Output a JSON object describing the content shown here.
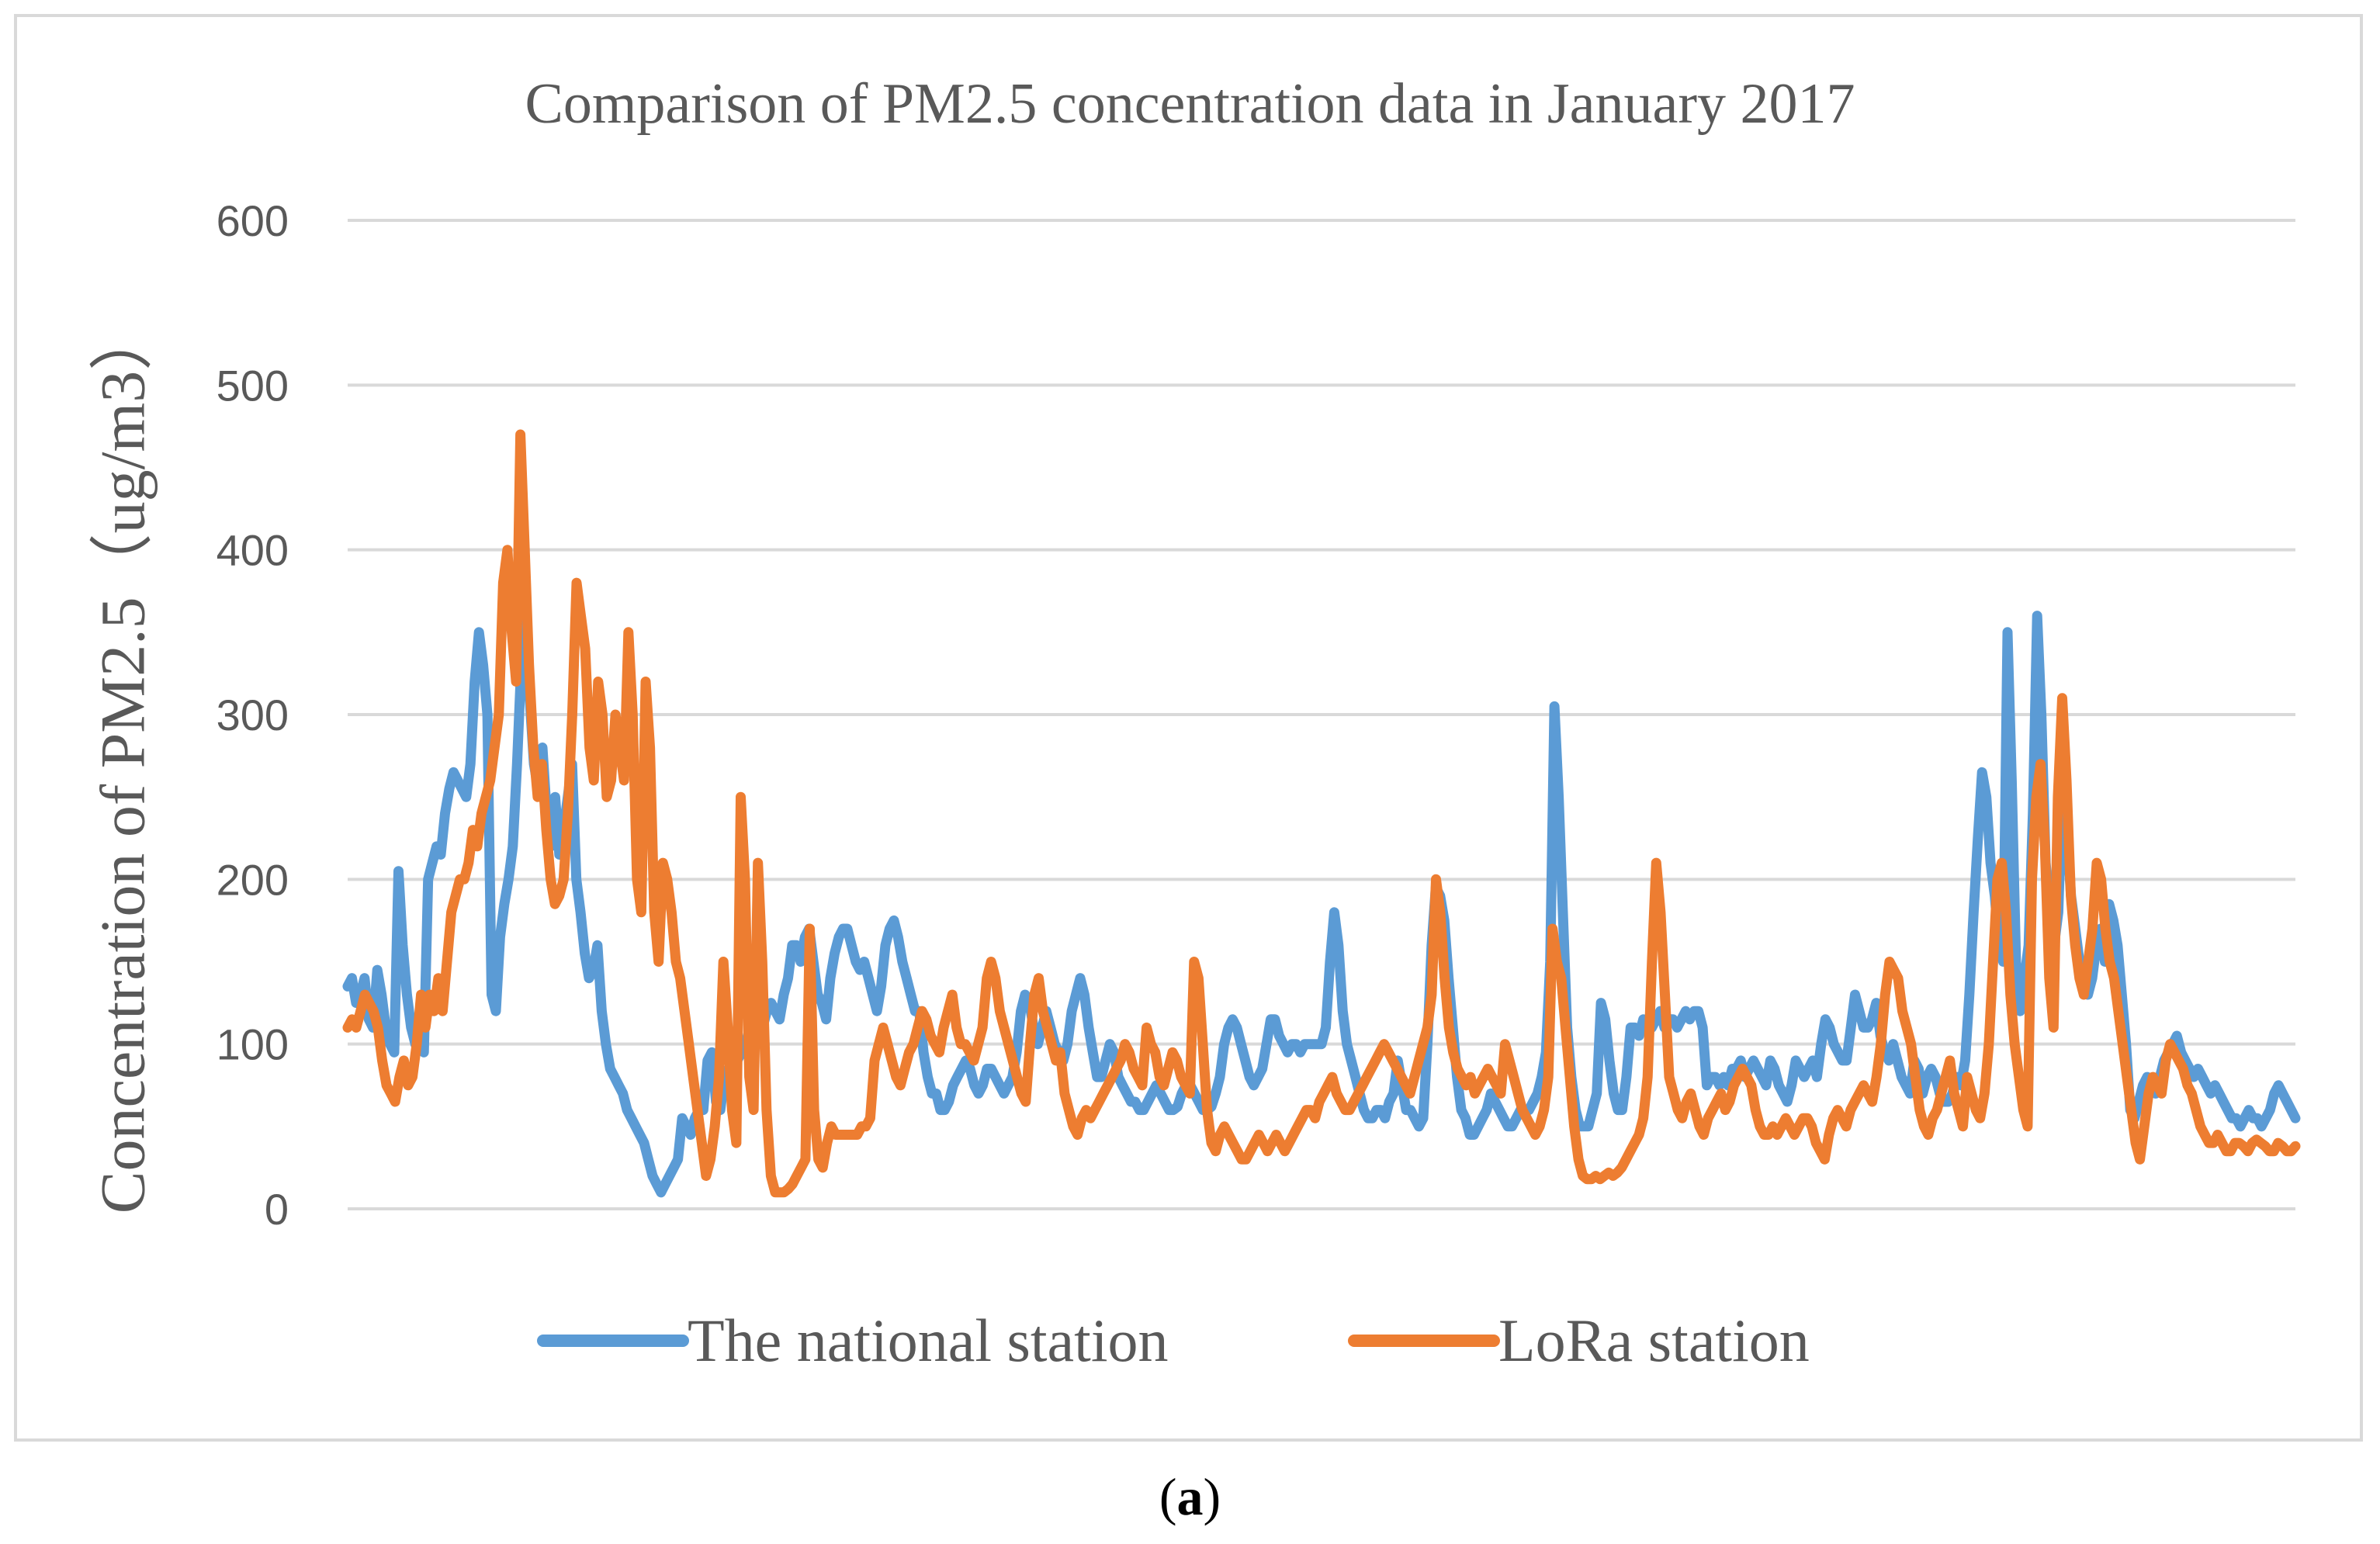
{
  "chart_data": {
    "type": "line",
    "title": "Comparison of PM2.5 concentration data in January 2017",
    "ylabel": "Concentration of PM2.5（ug/m3）",
    "xlabel": "",
    "ylim": [
      0,
      600
    ],
    "yticks": [
      0,
      100,
      200,
      300,
      400,
      500,
      600
    ],
    "grid": true,
    "legend": "bottom",
    "series": [
      {
        "name": "The national station",
        "color": "#5b9bd5",
        "values": [
          135,
          140,
          125,
          130,
          140,
          115,
          110,
          145,
          130,
          110,
          100,
          95,
          205,
          160,
          130,
          110,
          100,
          105,
          95,
          200,
          210,
          220,
          215,
          240,
          255,
          265,
          260,
          255,
          250,
          270,
          320,
          350,
          330,
          300,
          130,
          120,
          165,
          185,
          200,
          220,
          270,
          330,
          360,
          310,
          270,
          255,
          280,
          240,
          220,
          250,
          215,
          230,
          250,
          270,
          200,
          180,
          155,
          140,
          145,
          160,
          120,
          100,
          85,
          80,
          75,
          70,
          60,
          55,
          50,
          45,
          40,
          30,
          20,
          15,
          10,
          15,
          20,
          25,
          30,
          55,
          50,
          45,
          55,
          60,
          60,
          90,
          95,
          65,
          60,
          80,
          85,
          80,
          90,
          95,
          100,
          110,
          150,
          140,
          110,
          120,
          125,
          120,
          115,
          130,
          140,
          160,
          160,
          150,
          165,
          170,
          150,
          130,
          125,
          115,
          140,
          155,
          165,
          170,
          170,
          160,
          150,
          145,
          150,
          140,
          130,
          120,
          135,
          160,
          170,
          175,
          165,
          150,
          140,
          130,
          120,
          120,
          95,
          80,
          70,
          70,
          60,
          60,
          65,
          75,
          80,
          85,
          90,
          85,
          75,
          70,
          75,
          85,
          85,
          80,
          75,
          70,
          75,
          80,
          95,
          120,
          130,
          125,
          110,
          100,
          110,
          120,
          110,
          100,
          95,
          90,
          100,
          120,
          130,
          140,
          130,
          110,
          95,
          80,
          80,
          90,
          100,
          95,
          80,
          75,
          70,
          65,
          65,
          60,
          60,
          65,
          70,
          75,
          70,
          65,
          60,
          60,
          62,
          70,
          75,
          75,
          70,
          65,
          60,
          60,
          62,
          70,
          80,
          100,
          110,
          115,
          110,
          100,
          90,
          80,
          75,
          80,
          85,
          100,
          115,
          115,
          105,
          100,
          95,
          100,
          100,
          95,
          100,
          100,
          100,
          100,
          100,
          110,
          150,
          180,
          160,
          120,
          100,
          90,
          80,
          70,
          60,
          55,
          55,
          60,
          60,
          55,
          65,
          70,
          90,
          75,
          60,
          60,
          55,
          50,
          55,
          100,
          160,
          195,
          190,
          175,
          140,
          110,
          80,
          60,
          55,
          45,
          45,
          50,
          55,
          60,
          70,
          65,
          60,
          55,
          50,
          50,
          55,
          60,
          60,
          60,
          65,
          70,
          80,
          95,
          150,
          305,
          250,
          180,
          110,
          80,
          60,
          50,
          50,
          50,
          60,
          70,
          125,
          115,
          90,
          70,
          60,
          60,
          80,
          110,
          110,
          105,
          115,
          110,
          110,
          115,
          120,
          110,
          115,
          115,
          110,
          115,
          120,
          115,
          120,
          120,
          110,
          75,
          80,
          80,
          75,
          80,
          75,
          85,
          85,
          90,
          80,
          85,
          90,
          85,
          80,
          75,
          90,
          85,
          75,
          70,
          65,
          75,
          90,
          85,
          80,
          85,
          90,
          80,
          100,
          115,
          110,
          100,
          95,
          90,
          90,
          110,
          130,
          120,
          110,
          110,
          115,
          125,
          105,
          95,
          90,
          100,
          90,
          80,
          75,
          70,
          90,
          85,
          70,
          80,
          85,
          80,
          70,
          65,
          65,
          70,
          80,
          75,
          90,
          130,
          180,
          225,
          265,
          250,
          210,
          190,
          160,
          150,
          350,
          260,
          150,
          120,
          140,
          160,
          240,
          360,
          300,
          210,
          180,
          160,
          180,
          260,
          230,
          190,
          170,
          150,
          140,
          130,
          140,
          160,
          170,
          150,
          185,
          175,
          160,
          130,
          100,
          60,
          55,
          65,
          75,
          80,
          75,
          70,
          80,
          90,
          95,
          100,
          105,
          95,
          90,
          85,
          80,
          85,
          80,
          75,
          70,
          75,
          70,
          65,
          60,
          55,
          55,
          50,
          55,
          60,
          55,
          55,
          50,
          55,
          60,
          70,
          75,
          70,
          65,
          60,
          55
        ]
      },
      {
        "name": "LoRa station",
        "color": "#ed7d31",
        "values": [
          110,
          115,
          110,
          120,
          130,
          125,
          120,
          110,
          90,
          75,
          70,
          65,
          80,
          90,
          75,
          80,
          100,
          130,
          110,
          130,
          120,
          140,
          120,
          150,
          180,
          190,
          200,
          200,
          210,
          230,
          220,
          240,
          250,
          260,
          280,
          300,
          380,
          400,
          350,
          320,
          470,
          400,
          330,
          280,
          250,
          270,
          230,
          200,
          185,
          190,
          200,
          240,
          300,
          380,
          360,
          340,
          280,
          260,
          320,
          300,
          250,
          260,
          300,
          280,
          260,
          350,
          300,
          200,
          180,
          320,
          280,
          180,
          150,
          210,
          200,
          180,
          150,
          140,
          120,
          100,
          80,
          60,
          40,
          20,
          30,
          50,
          80,
          150,
          110,
          60,
          40,
          250,
          200,
          80,
          60,
          210,
          150,
          60,
          20,
          10,
          10,
          10,
          12,
          15,
          20,
          25,
          30,
          170,
          60,
          30,
          25,
          40,
          50,
          45,
          45,
          45,
          45,
          45,
          45,
          50,
          50,
          55,
          90,
          100,
          110,
          100,
          90,
          80,
          75,
          85,
          95,
          100,
          110,
          120,
          115,
          105,
          100,
          95,
          110,
          120,
          130,
          110,
          100,
          100,
          95,
          90,
          100,
          110,
          140,
          150,
          140,
          120,
          110,
          100,
          90,
          80,
          70,
          65,
          100,
          130,
          140,
          120,
          110,
          100,
          90,
          95,
          70,
          60,
          50,
          45,
          55,
          60,
          55,
          60,
          65,
          70,
          75,
          80,
          85,
          90,
          100,
          95,
          85,
          80,
          75,
          110,
          100,
          95,
          80,
          75,
          85,
          95,
          90,
          80,
          75,
          70,
          150,
          140,
          100,
          60,
          40,
          35,
          45,
          50,
          45,
          40,
          35,
          30,
          30,
          35,
          40,
          45,
          40,
          35,
          40,
          45,
          40,
          35,
          40,
          45,
          50,
          55,
          60,
          60,
          55,
          65,
          70,
          75,
          80,
          70,
          65,
          60,
          60,
          65,
          70,
          75,
          80,
          85,
          90,
          95,
          100,
          95,
          90,
          85,
          80,
          75,
          70,
          80,
          90,
          100,
          110,
          130,
          200,
          180,
          140,
          110,
          95,
          85,
          80,
          75,
          80,
          70,
          75,
          80,
          85,
          80,
          75,
          70,
          100,
          90,
          80,
          70,
          60,
          55,
          50,
          45,
          50,
          60,
          80,
          170,
          150,
          140,
          110,
          80,
          50,
          30,
          20,
          18,
          18,
          20,
          18,
          20,
          22,
          20,
          22,
          25,
          30,
          35,
          40,
          45,
          55,
          80,
          150,
          210,
          180,
          130,
          80,
          70,
          60,
          55,
          65,
          70,
          60,
          50,
          45,
          55,
          60,
          65,
          70,
          60,
          65,
          75,
          80,
          85,
          80,
          75,
          60,
          50,
          45,
          45,
          50,
          45,
          50,
          55,
          50,
          45,
          50,
          55,
          55,
          50,
          40,
          35,
          30,
          45,
          55,
          60,
          55,
          50,
          60,
          65,
          70,
          75,
          70,
          65,
          80,
          100,
          130,
          150,
          145,
          140,
          120,
          110,
          100,
          80,
          60,
          50,
          45,
          55,
          60,
          70,
          80,
          90,
          70,
          60,
          50,
          80,
          70,
          60,
          55,
          70,
          100,
          150,
          200,
          210,
          180,
          130,
          100,
          80,
          60,
          50,
          200,
          250,
          270,
          220,
          140,
          110,
          250,
          310,
          260,
          190,
          160,
          140,
          130,
          150,
          170,
          210,
          200,
          170,
          150,
          140,
          120,
          100,
          80,
          60,
          40,
          30,
          50,
          70,
          80,
          75,
          70,
          90,
          100,
          95,
          90,
          85,
          75,
          70,
          60,
          50,
          45,
          40,
          40,
          45,
          40,
          35,
          35,
          40,
          40,
          38,
          35,
          40,
          42,
          40,
          38,
          35,
          35,
          40,
          38,
          35,
          35,
          38
        ]
      }
    ]
  },
  "caption": {
    "label": "a",
    "open": "(",
    "close": ")"
  }
}
